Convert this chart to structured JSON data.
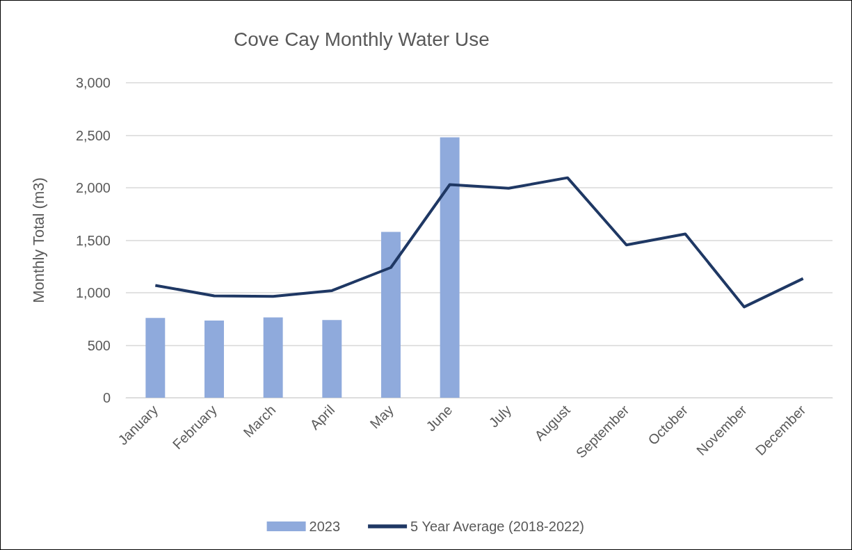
{
  "chart_data": {
    "type": "bar",
    "title": "Cove Cay Monthly Water Use",
    "ylabel": "Monthly Total (m3)",
    "categories": [
      "January",
      "February",
      "March",
      "April",
      "May",
      "June",
      "July",
      "August",
      "September",
      "October",
      "November",
      "December"
    ],
    "series": [
      {
        "name": "2023",
        "color": "#8faadc",
        "values": [
          760,
          735,
          765,
          740,
          1580,
          2480,
          null,
          null,
          null,
          null,
          null,
          null
        ]
      },
      {
        "name": "5 Year Average (2018-2022)",
        "type": "line",
        "color": "#1f3864",
        "marker": "none",
        "values": [
          1070,
          970,
          965,
          1020,
          1240,
          2030,
          1995,
          2095,
          1455,
          1560,
          865,
          1135
        ]
      }
    ],
    "ylim": [
      0,
      3000
    ],
    "yticks": [
      0,
      500,
      {
        "value": 1000,
        "label": "1,000"
      },
      {
        "value": 1500,
        "label": "1,500"
      },
      {
        "value": 2000,
        "label": "2,000"
      },
      {
        "value": 2500,
        "label": "2,500"
      },
      {
        "value": 3000,
        "label": "3,000"
      }
    ],
    "grid": "y",
    "legend": "bottom"
  }
}
